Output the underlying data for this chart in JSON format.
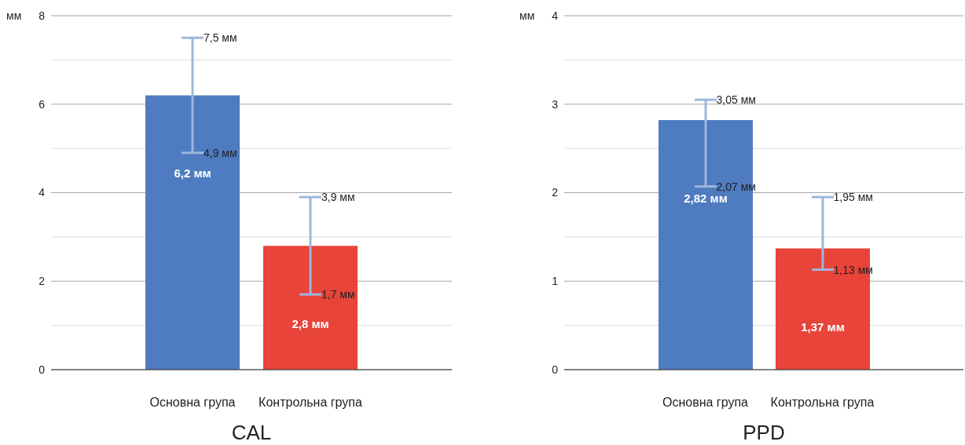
{
  "chart_data": [
    {
      "type": "bar",
      "title": "CAL",
      "ylabel": "мм",
      "categories": [
        "Основна група",
        "Контрольна група"
      ],
      "values": [
        6.2,
        2.8
      ],
      "colors": [
        "#4f7bc0",
        "#e8443a"
      ],
      "errors": [
        [
          4.9,
          7.5
        ],
        [
          1.7,
          3.9
        ]
      ],
      "value_labels": [
        "6,2 мм",
        "2,8 мм"
      ],
      "ylim": [
        0,
        8
      ],
      "yticks": [
        0,
        {
          "value": 1,
          "label": null
        },
        2,
        {
          "value": 3,
          "label": null
        },
        4,
        {
          "value": 5,
          "label": null
        },
        6,
        {
          "value": 7,
          "label": null
        },
        8
      ],
      "grid": "y",
      "legend": false,
      "annotations": [
        {
          "text": "7,5 мм",
          "x": "Основна група",
          "y": 7.5
        },
        {
          "text": "4,9 мм",
          "x": "Основна група",
          "y": 4.9
        },
        {
          "text": "3,9 мм",
          "x": "Контрольна група",
          "y": 3.9
        },
        {
          "text": "1,7 мм",
          "x": "Контрольна група",
          "y": 1.7
        }
      ]
    },
    {
      "type": "bar",
      "title": "PPD",
      "ylabel": "мм",
      "categories": [
        "Основна група",
        "Контрольна група"
      ],
      "values": [
        2.82,
        1.37
      ],
      "colors": [
        "#4f7bc0",
        "#e8443a"
      ],
      "errors": [
        [
          2.07,
          3.05
        ],
        [
          1.13,
          1.95
        ]
      ],
      "value_labels": [
        "2,82 мм",
        "1,37 мм"
      ],
      "ylim": [
        0,
        4
      ],
      "yticks": [
        0,
        {
          "value": 0.5,
          "label": null
        },
        1,
        {
          "value": 1.5,
          "label": null
        },
        2,
        {
          "value": 2.5,
          "label": null
        },
        3,
        {
          "value": 3.5,
          "label": null
        },
        4
      ],
      "grid": "y",
      "legend": false,
      "annotations": [
        {
          "text": "3,05 мм",
          "x": "Основна група",
          "y": 3.05
        },
        {
          "text": "2,07 мм",
          "x": "Основна група",
          "y": 2.07
        },
        {
          "text": "1,95 мм",
          "x": "Контрольна група",
          "y": 1.95
        },
        {
          "text": "1,13 мм",
          "x": "Контрольна група",
          "y": 1.13
        }
      ]
    }
  ]
}
